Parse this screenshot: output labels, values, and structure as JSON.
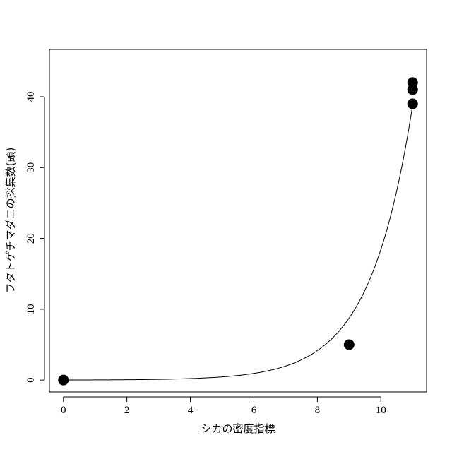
{
  "chart_data": {
    "type": "scatter",
    "title": "",
    "xlabel": "シカの密度指標",
    "ylabel": "フタトゲチマダニの採集数(頭)",
    "xlim": [
      -0.44,
      11.44
    ],
    "ylim": [
      -1.68,
      46.68
    ],
    "x_ticks": [
      0,
      2,
      4,
      6,
      8,
      10
    ],
    "y_ticks": [
      0,
      10,
      20,
      30,
      40
    ],
    "grid": false,
    "legend": "none",
    "points": [
      {
        "x": 0,
        "y": 0
      },
      {
        "x": 9,
        "y": 5
      },
      {
        "x": 11,
        "y": 39
      },
      {
        "x": 11,
        "y": 41
      },
      {
        "x": 11,
        "y": 42
      }
    ],
    "fit_curve": {
      "form": "exponential",
      "a": 0.01078,
      "b": 0.7444,
      "x_range": [
        0,
        11
      ]
    }
  }
}
